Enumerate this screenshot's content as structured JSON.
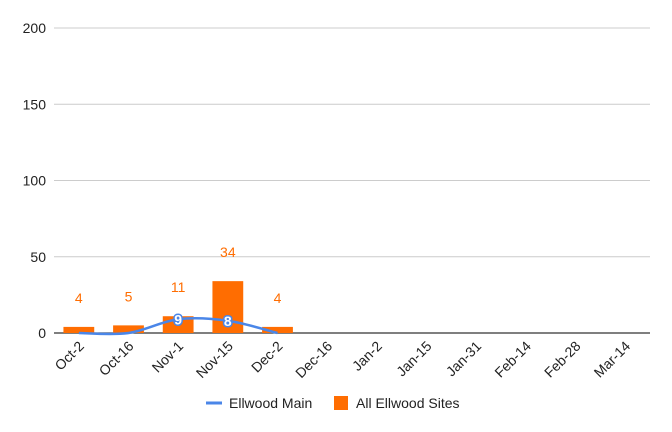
{
  "chart_data": {
    "type": "bar",
    "categories": [
      "Oct-2",
      "Oct-16",
      "Nov-1",
      "Nov-15",
      "Dec-2",
      "Dec-16",
      "Jan-2",
      "Jan-15",
      "Jan-31",
      "Feb-14",
      "Feb-28",
      "Mar-14"
    ],
    "ylim": [
      0,
      200
    ],
    "yticks": [
      0,
      50,
      100,
      150,
      200
    ],
    "grid": true,
    "legend_position": "bottom",
    "series": [
      {
        "name": "All Ellwood Sites",
        "type": "bar",
        "color": "#FF6D01",
        "values": [
          4,
          5,
          11,
          34,
          4,
          null,
          null,
          null,
          null,
          null,
          null,
          null
        ],
        "labels": [
          "4",
          "5",
          "11",
          "34",
          "4",
          "",
          "",
          "",
          "",
          "",
          "",
          ""
        ]
      },
      {
        "name": "Ellwood Main",
        "type": "line",
        "color": "#4A86E8",
        "values": [
          0,
          0,
          9,
          8,
          0,
          null,
          null,
          null,
          null,
          null,
          null,
          null
        ],
        "labels": [
          "",
          "",
          "9",
          "8",
          "",
          "",
          "",
          "",
          "",
          "",
          "",
          ""
        ]
      }
    ]
  }
}
